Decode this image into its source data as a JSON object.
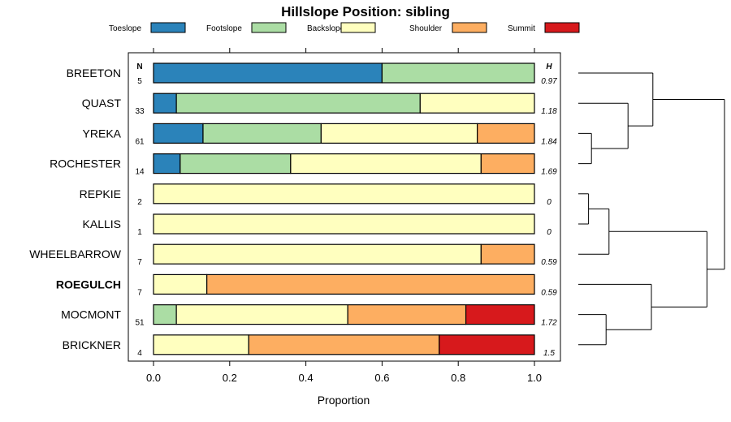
{
  "chart_data": {
    "type": "bar",
    "orientation": "horizontal-stacked",
    "title": "Hillslope Position: sibling",
    "xlabel": "Proportion",
    "ylabel": "",
    "xlim": [
      0,
      1
    ],
    "x_ticks": [
      "0.0",
      "0.2",
      "0.4",
      "0.6",
      "0.8",
      "1.0"
    ],
    "x_tick_values": [
      0,
      0.2,
      0.4,
      0.6,
      0.8,
      1.0
    ],
    "n_header": "N",
    "h_header": "H",
    "legend_position": "top",
    "categories": [
      "BREETON",
      "QUAST",
      "YREKA",
      "ROCHESTER",
      "REPKIE",
      "KALLIS",
      "WHEELBARROW",
      "ROEGULCH",
      "MOCMONT",
      "BRICKNER"
    ],
    "highlighted_category": "ROEGULCH",
    "n": [
      "5",
      "33",
      "61",
      "14",
      "2",
      "1",
      "7",
      "7",
      "51",
      "4"
    ],
    "h": [
      "0.97",
      "1.18",
      "1.84",
      "1.69",
      "0",
      "0",
      "0.59",
      "0.59",
      "1.72",
      "1.5"
    ],
    "series": [
      {
        "name": "Toeslope",
        "color": "#2b83ba",
        "values": [
          0.6,
          0.06,
          0.13,
          0.07,
          0,
          0,
          0,
          0,
          0,
          0
        ]
      },
      {
        "name": "Footslope",
        "color": "#abdda4",
        "values": [
          0.4,
          0.64,
          0.31,
          0.29,
          0,
          0,
          0,
          0,
          0.06,
          0
        ]
      },
      {
        "name": "Backslope",
        "color": "#ffffbf",
        "values": [
          0,
          0.3,
          0.41,
          0.5,
          1.0,
          1.0,
          0.86,
          0.14,
          0.45,
          0.25
        ]
      },
      {
        "name": "Shoulder",
        "color": "#fdae61",
        "values": [
          0,
          0,
          0.15,
          0.14,
          0,
          0,
          0.14,
          0.86,
          0.31,
          0.5
        ]
      },
      {
        "name": "Summit",
        "color": "#d7191c",
        "values": [
          0,
          0,
          0,
          0,
          0,
          0,
          0,
          0,
          0.18,
          0.25
        ]
      }
    ],
    "dendrogram": {
      "merges": [
        {
          "left": "REPKIE",
          "right": "KALLIS",
          "height": 0.07
        },
        {
          "left": "merge:REPKIE+KALLIS",
          "right": "WHEELBARROW",
          "height": 0.21
        },
        {
          "left": "YREKA",
          "right": "ROCHESTER",
          "height": 0.09
        },
        {
          "left": "QUAST",
          "right": "merge:YREKA+ROCHESTER",
          "height": 0.34
        },
        {
          "left": "BREETON",
          "right": "merge:QUAST+YREKA+ROCHESTER",
          "height": 0.51
        },
        {
          "left": "MOCMONT",
          "right": "BRICKNER",
          "height": 0.19
        },
        {
          "left": "ROEGULCH",
          "right": "merge:MOCMONT+BRICKNER",
          "height": 0.5
        },
        {
          "left": "merge:REPKIE+KALLIS+WHEELBARROW",
          "right": "merge:ROEGULCH+MOCMONT+BRICKNER",
          "height": 0.88
        },
        {
          "left": "merge:BREETON+QUAST+YREKA+ROCHESTER",
          "right": "merge:REPKIE+KALLIS+WHEELBARROW+ROEGULCH+MOCMONT+BRICKNER",
          "height": 1.0
        }
      ]
    }
  }
}
